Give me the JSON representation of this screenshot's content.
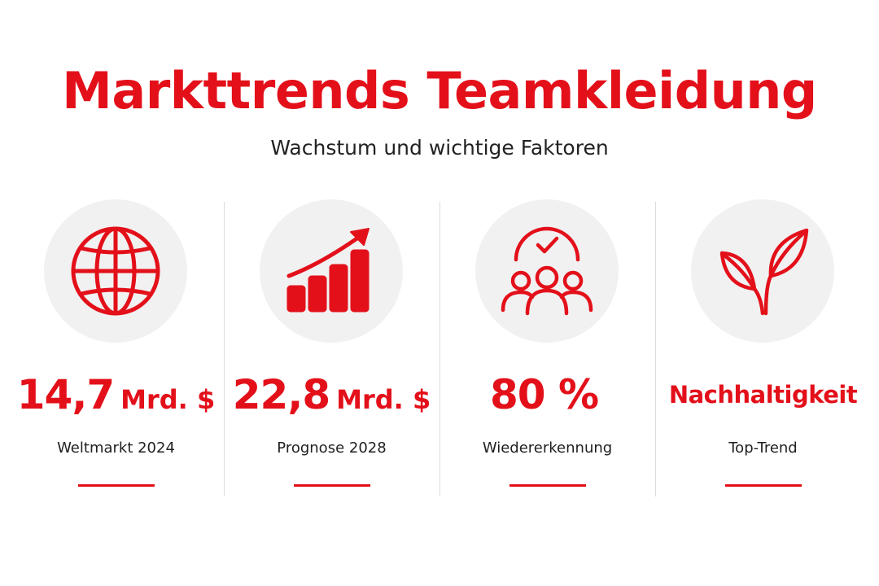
{
  "title": "Markttrends Teamkleidung",
  "subtitle": "Wachstum und wichtige Faktoren",
  "colors": {
    "accent": "#e3101a",
    "icon_background": "#f1f1f1",
    "divider": "#dcdcdc",
    "text": "#222222"
  },
  "stats": [
    {
      "icon": "globe-icon",
      "value": "14,7",
      "unit": "Mrd. $",
      "label": "Weltmarkt 2024"
    },
    {
      "icon": "growth-chart-icon",
      "value": "22,8",
      "unit": "Mrd. $",
      "label": "Prognose 2028"
    },
    {
      "icon": "team-check-icon",
      "value": "80 %",
      "unit": "",
      "label": "Wiedererkennung"
    },
    {
      "icon": "leaf-icon",
      "value": "Nachhaltigkeit",
      "unit": "",
      "label": "Top-Trend"
    }
  ]
}
